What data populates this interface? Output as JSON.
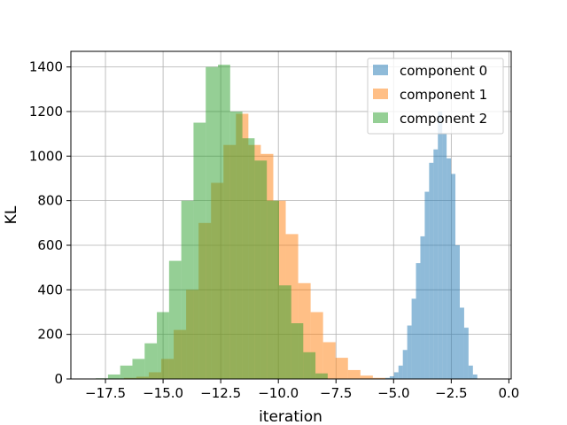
{
  "chart_data": {
    "type": "histogram",
    "title": "",
    "xlabel": "iteration",
    "ylabel": "KL",
    "xlim": [
      -19.0,
      0.1
    ],
    "ylim": [
      0,
      1470
    ],
    "xticks": [
      -17.5,
      -15.0,
      -12.5,
      -10.0,
      -7.5,
      -5.0,
      -2.5,
      0.0
    ],
    "xtick_labels": [
      "−17.5",
      "−15.0",
      "−12.5",
      "−10.0",
      "−7.5",
      "−5.0",
      "−2.5",
      "0.0"
    ],
    "yticks": [
      0,
      200,
      400,
      600,
      800,
      1000,
      1200,
      1400
    ],
    "ytick_labels": [
      "0",
      "200",
      "400",
      "600",
      "800",
      "1000",
      "1200",
      "1400"
    ],
    "grid": true,
    "legend_position": "top-right",
    "series": [
      {
        "name": "component 0",
        "color": "#1f77b4",
        "opacity": 0.5,
        "bin_edges": [
          -5.55,
          -5.36,
          -5.17,
          -4.98,
          -4.79,
          -4.6,
          -4.41,
          -4.22,
          -4.03,
          -3.84,
          -3.65,
          -3.46,
          -3.27,
          -3.08,
          -2.89,
          -2.7,
          -2.51,
          -2.32,
          -2.13,
          -1.94,
          -1.75,
          -1.56,
          -1.37
        ],
        "counts": [
          2,
          5,
          12,
          30,
          60,
          130,
          240,
          360,
          520,
          640,
          840,
          970,
          1030,
          1200,
          1100,
          990,
          920,
          600,
          320,
          230,
          60,
          20
        ]
      },
      {
        "name": "component 1",
        "color": "#ff7f0e",
        "opacity": 0.5,
        "bin_edges": [
          -16.7,
          -16.16,
          -15.62,
          -15.08,
          -14.54,
          -14.0,
          -13.46,
          -12.92,
          -12.38,
          -11.84,
          -11.3,
          -10.76,
          -10.22,
          -9.68,
          -9.14,
          -8.6,
          -8.06,
          -7.52,
          -6.98,
          -6.44,
          -5.9,
          -5.36
        ],
        "counts": [
          5,
          10,
          30,
          90,
          220,
          400,
          700,
          880,
          1050,
          1190,
          1050,
          1010,
          800,
          650,
          430,
          300,
          165,
          95,
          40,
          15,
          5
        ]
      },
      {
        "name": "component 2",
        "color": "#2ca02c",
        "opacity": 0.5,
        "bin_edges": [
          -17.92,
          -17.39,
          -16.86,
          -16.33,
          -15.8,
          -15.27,
          -14.74,
          -14.21,
          -13.68,
          -13.15,
          -12.62,
          -12.09,
          -11.56,
          -11.03,
          -10.5,
          -9.97,
          -9.44,
          -8.92,
          -8.39,
          -7.86
        ],
        "counts": [
          3,
          20,
          60,
          90,
          160,
          300,
          530,
          800,
          1150,
          1400,
          1410,
          1200,
          1080,
          980,
          800,
          420,
          250,
          120,
          25
        ]
      }
    ]
  }
}
